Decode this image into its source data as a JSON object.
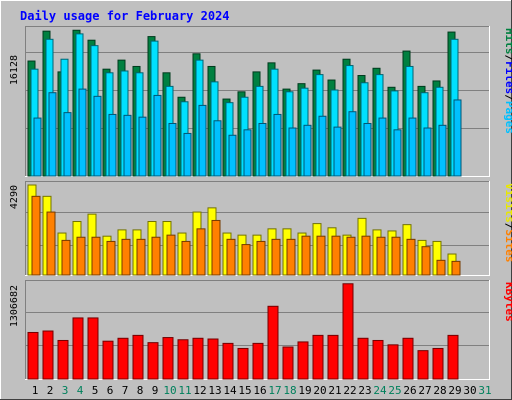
{
  "chart_data": [
    {
      "type": "bar",
      "title": "Daily usage for February 2024",
      "ylabel_parts": [
        "Pages",
        "Files",
        "Hits"
      ],
      "ymax_label": "16128",
      "ymax": 16128,
      "x": [
        "1",
        "2",
        "3",
        "4",
        "5",
        "6",
        "7",
        "8",
        "9",
        "10",
        "11",
        "12",
        "13",
        "14",
        "15",
        "16",
        "17",
        "18",
        "19",
        "20",
        "21",
        "22",
        "23",
        "24",
        "25",
        "26",
        "27",
        "28",
        "29",
        "30",
        "31"
      ],
      "series": [
        {
          "name": "Hits",
          "color": "#008040",
          "values": [
            12700,
            16000,
            11500,
            16100,
            15000,
            11800,
            12800,
            12100,
            15400,
            11400,
            8700,
            13500,
            12100,
            8500,
            9300,
            11500,
            12500,
            9600,
            10200,
            11700,
            10600,
            12900,
            11100,
            11900,
            9800,
            13800,
            9900,
            10500,
            15900,
            0,
            0
          ]
        },
        {
          "name": "Files",
          "color": "#00e0ff",
          "values": [
            11800,
            15100,
            12900,
            15700,
            14400,
            11400,
            11600,
            11400,
            14900,
            9900,
            8200,
            12800,
            10400,
            8100,
            8700,
            9900,
            11800,
            9300,
            9700,
            11200,
            9500,
            12200,
            10300,
            11200,
            9400,
            12100,
            9200,
            9800,
            15100,
            0,
            0
          ]
        },
        {
          "name": "Pages",
          "color": "#00c0ff",
          "values": [
            6400,
            9200,
            7000,
            9600,
            8800,
            6800,
            6700,
            6500,
            8900,
            5800,
            4700,
            7800,
            6100,
            4500,
            5100,
            5800,
            6800,
            5300,
            5600,
            6600,
            5400,
            7100,
            5800,
            6400,
            5100,
            6400,
            5300,
            5600,
            8400,
            0,
            0
          ]
        }
      ]
    },
    {
      "type": "bar",
      "ylabel_parts": [
        "Sites",
        "Visits"
      ],
      "ymax_label": "4290",
      "ymax": 4290,
      "x": [
        "1",
        "2",
        "3",
        "4",
        "5",
        "6",
        "7",
        "8",
        "9",
        "10",
        "11",
        "12",
        "13",
        "14",
        "15",
        "16",
        "17",
        "18",
        "19",
        "20",
        "21",
        "22",
        "23",
        "24",
        "25",
        "26",
        "27",
        "28",
        "29",
        "30",
        "31"
      ],
      "series": [
        {
          "name": "Visits",
          "color": "#ffff00",
          "values": [
            4290,
            3750,
            2000,
            2550,
            2900,
            1850,
            2150,
            2150,
            2550,
            2550,
            2000,
            3000,
            3200,
            2000,
            1900,
            1900,
            2200,
            2200,
            2000,
            2450,
            2250,
            1900,
            2700,
            2150,
            2100,
            2400,
            1650,
            1600,
            1000,
            0,
            0
          ]
        },
        {
          "name": "Sites",
          "color": "#ff8000",
          "values": [
            3750,
            3000,
            1650,
            1800,
            1800,
            1600,
            1700,
            1700,
            1800,
            1900,
            1600,
            2200,
            2600,
            1700,
            1450,
            1600,
            1700,
            1700,
            1850,
            1850,
            1850,
            1800,
            1850,
            1800,
            1800,
            1700,
            1350,
            700,
            650,
            0,
            0
          ]
        }
      ]
    },
    {
      "type": "bar",
      "ylabel_parts": [
        "KBytes"
      ],
      "ymax_label": "1306682",
      "ymax": 1306682,
      "x": [
        "1",
        "2",
        "3",
        "4",
        "5",
        "6",
        "7",
        "8",
        "9",
        "10",
        "11",
        "12",
        "13",
        "14",
        "15",
        "16",
        "17",
        "18",
        "19",
        "20",
        "21",
        "22",
        "23",
        "24",
        "25",
        "26",
        "27",
        "28",
        "29",
        "30",
        "31"
      ],
      "series": [
        {
          "name": "KBytes",
          "color": "#ff0000",
          "values": [
            640000,
            660000,
            530000,
            840000,
            840000,
            520000,
            560000,
            600000,
            500000,
            570000,
            540000,
            560000,
            550000,
            490000,
            420000,
            490000,
            1000000,
            440000,
            510000,
            600000,
            600000,
            1310000,
            560000,
            530000,
            470000,
            560000,
            390000,
            420000,
            600000,
            0,
            0
          ]
        }
      ]
    }
  ],
  "day_colors": {
    "weekday": "#000000",
    "weekend": "#00805c"
  },
  "weekend_days": [
    "3",
    "4",
    "10",
    "11",
    "17",
    "18",
    "24",
    "25",
    "31"
  ]
}
